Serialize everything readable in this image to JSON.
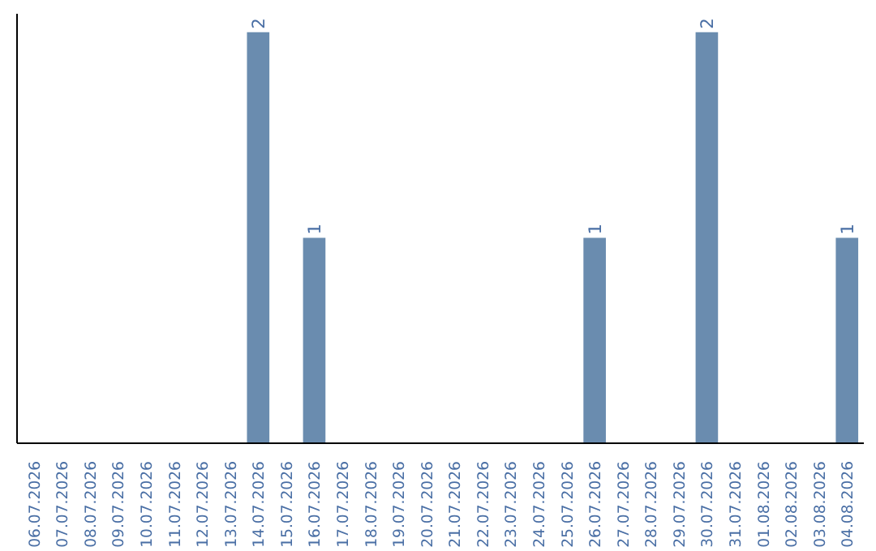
{
  "chart_data": {
    "type": "bar",
    "categories": [
      "06.07.2026",
      "07.07.2026",
      "08.07.2026",
      "09.07.2026",
      "10.07.2026",
      "11.07.2026",
      "12.07.2026",
      "13.07.2026",
      "14.07.2026",
      "15.07.2026",
      "16.07.2026",
      "17.07.2026",
      "18.07.2026",
      "19.07.2026",
      "20.07.2026",
      "21.07.2026",
      "22.07.2026",
      "23.07.2026",
      "24.07.2026",
      "25.07.2026",
      "26.07.2026",
      "27.07.2026",
      "28.07.2026",
      "29.07.2026",
      "30.07.2026",
      "31.07.2026",
      "01.08.2026",
      "02.08.2026",
      "03.08.2026",
      "04.08.2026"
    ],
    "values": [
      0,
      0,
      0,
      0,
      0,
      0,
      0,
      0,
      2,
      0,
      1,
      0,
      0,
      0,
      0,
      0,
      0,
      0,
      0,
      0,
      1,
      0,
      0,
      0,
      2,
      0,
      0,
      0,
      0,
      1
    ],
    "value_labels": [
      null,
      null,
      null,
      null,
      null,
      null,
      null,
      null,
      "2",
      null,
      "1",
      null,
      null,
      null,
      null,
      null,
      null,
      null,
      null,
      null,
      "1",
      null,
      null,
      null,
      "2",
      null,
      null,
      null,
      null,
      "1"
    ],
    "color": "#6a8caf",
    "grid": false,
    "tick_labels": "x"
  }
}
